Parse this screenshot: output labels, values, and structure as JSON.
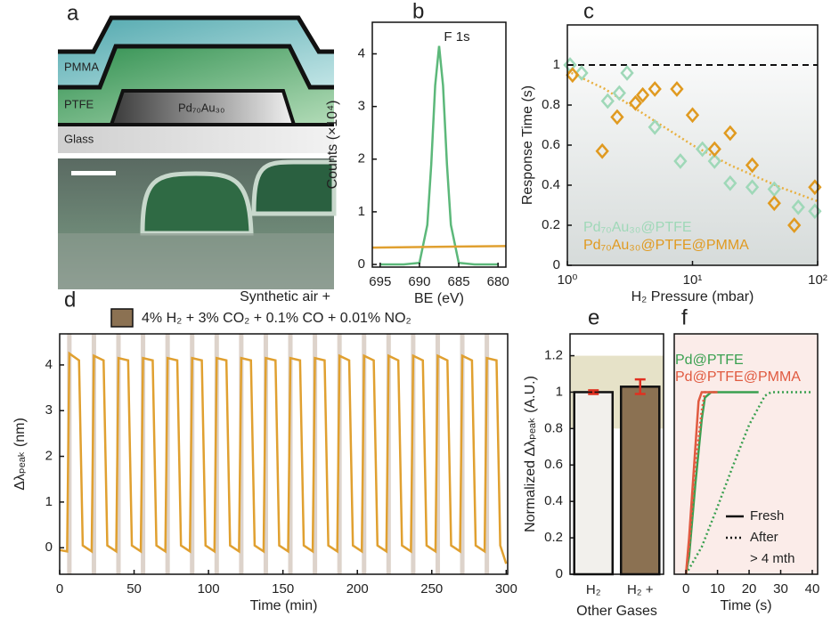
{
  "panel_a": {
    "label": "a",
    "layers": [
      "PMMA",
      "PTFE",
      "Pd₇₀Au₃₀",
      "Glass"
    ]
  },
  "chart_data": [
    {
      "label": "b",
      "type": "line",
      "annotation": "F 1s",
      "xlabel": "BE (eV)",
      "ylabel": "Counts (×10⁴)",
      "xlim": [
        696,
        679
      ],
      "xticks": [
        695,
        690,
        685,
        680
      ],
      "ylim": [
        -0.05,
        4.6
      ],
      "yticks": [
        0,
        1,
        2,
        3,
        4
      ],
      "series": [
        {
          "color": "#5cb87a",
          "x": [
            695,
            692,
            690,
            689,
            688.5,
            688,
            687.5,
            687,
            686.5,
            686,
            685,
            683,
            680
          ],
          "values": [
            0,
            0,
            0.03,
            0.75,
            1.9,
            3.4,
            4.15,
            3.4,
            1.9,
            0.75,
            0.03,
            0,
            0
          ]
        },
        {
          "color": "#e0a030",
          "x": [
            696,
            679
          ],
          "values": [
            0.32,
            0.35
          ]
        }
      ]
    },
    {
      "label": "c",
      "type": "scatter",
      "xscale": "log",
      "xlabel": "H₂ Pressure (mbar)",
      "ylabel": "Response Time (s)",
      "xlim": [
        1,
        100
      ],
      "xticks": [
        {
          "value": 1,
          "label": "10⁰"
        },
        {
          "value": 10,
          "label": "10¹"
        },
        {
          "value": 100,
          "label": "10²"
        }
      ],
      "ylim": [
        0,
        1.2
      ],
      "yticks": [
        0,
        0.2,
        0.4,
        0.6,
        0.8,
        1
      ],
      "reference_line": 1,
      "series": [
        {
          "name": "Pd₇₀Au₃₀@PTFE",
          "color": "#9fd8b8",
          "x": [
            1.05,
            1.3,
            2.1,
            2.6,
            3,
            5,
            8,
            12,
            15,
            20,
            30,
            45,
            70,
            95
          ],
          "values": [
            1.0,
            0.96,
            0.82,
            0.86,
            0.96,
            0.69,
            0.52,
            0.58,
            0.52,
            0.41,
            0.39,
            0.38,
            0.29,
            0.27
          ]
        },
        {
          "name": "Pd₇₀Au₃₀@PTFE@PMMA",
          "color": "#e09a20",
          "x": [
            1.1,
            1.9,
            2.5,
            3.5,
            4,
            5,
            7.5,
            10,
            15,
            20,
            30,
            45,
            65,
            95
          ],
          "values": [
            0.95,
            0.57,
            0.74,
            0.81,
            0.85,
            0.88,
            0.88,
            0.75,
            0.58,
            0.66,
            0.5,
            0.31,
            0.2,
            0.39
          ]
        }
      ],
      "fit": {
        "color": "#e8b040",
        "x": [
          1,
          2,
          5,
          10,
          20,
          50,
          100
        ],
        "values": [
          0.97,
          0.88,
          0.72,
          0.6,
          0.5,
          0.39,
          0.32
        ]
      }
    },
    {
      "label": "d",
      "type": "line",
      "subtitle": "Synthetic air +",
      "legend_label": "4% H₂ + 3% CO₂ + 0.1% CO + 0.01% NO₂",
      "legend_color": "#8b7152",
      "shaded_color": "#ddd3cb",
      "xlabel": "Time (min)",
      "ylabel": "Δλₚₑₐₖ (nm)",
      "xlim": [
        0,
        301
      ],
      "xticks": [
        0,
        50,
        100,
        150,
        200,
        250,
        300
      ],
      "ylim": [
        -0.58,
        4.68
      ],
      "yticks": [
        0,
        1,
        2,
        3,
        4
      ],
      "shaded": [
        [
          5,
          8
        ],
        [
          21.5,
          24.5
        ],
        [
          38,
          41
        ],
        [
          54.5,
          57.5
        ],
        [
          71,
          74
        ],
        [
          87.5,
          90.5
        ],
        [
          104,
          107
        ],
        [
          120.5,
          123.5
        ],
        [
          137,
          140
        ],
        [
          153.5,
          156.5
        ],
        [
          170,
          173
        ],
        [
          186.5,
          189.5
        ],
        [
          203,
          206
        ],
        [
          219.5,
          222.5
        ],
        [
          236,
          239
        ],
        [
          252.5,
          255.5
        ],
        [
          269,
          272
        ],
        [
          285.5,
          288.5
        ]
      ],
      "series": [
        {
          "color": "#e0a030",
          "x": [
            0,
            5,
            6.5,
            13,
            15.5,
            21.5,
            23,
            29.5,
            32,
            38,
            39.5,
            46,
            48.5,
            54.5,
            56,
            62.5,
            65,
            71,
            72.5,
            79,
            81.5,
            87.5,
            89,
            95.5,
            98,
            104,
            105.5,
            112,
            114.5,
            120.5,
            122,
            128.5,
            131,
            137,
            138.5,
            145,
            147.5,
            153.5,
            155,
            161.5,
            164,
            170,
            171.5,
            178,
            180.5,
            186.5,
            188,
            194.5,
            197,
            203,
            204.5,
            211,
            213.5,
            219.5,
            221,
            227.5,
            230,
            236,
            237.5,
            244,
            246.5,
            252.5,
            254,
            260.5,
            263,
            269,
            270.5,
            277,
            279.5,
            285.5,
            287,
            293.5,
            296,
            300
          ],
          "values": [
            -0.05,
            -0.08,
            4.25,
            4.1,
            0.05,
            -0.08,
            4.2,
            4.1,
            0.05,
            -0.08,
            4.15,
            4.1,
            0.05,
            -0.08,
            4.15,
            4.1,
            0.05,
            -0.08,
            4.15,
            4.1,
            0.05,
            -0.08,
            4.15,
            4.1,
            0.05,
            -0.08,
            4.15,
            4.1,
            0.05,
            -0.08,
            4.15,
            4.1,
            0.05,
            -0.08,
            4.15,
            4.1,
            0.05,
            -0.08,
            4.15,
            4.1,
            0.05,
            -0.08,
            4.15,
            4.1,
            0.05,
            -0.08,
            4.2,
            4.1,
            0.05,
            -0.08,
            4.2,
            4.1,
            0.05,
            -0.08,
            4.2,
            4.1,
            0.05,
            -0.08,
            4.2,
            4.1,
            0.05,
            -0.08,
            4.2,
            4.1,
            0.05,
            -0.08,
            4.2,
            4.1,
            0.05,
            -0.08,
            4.15,
            4.1,
            0.05,
            -0.35
          ]
        }
      ]
    },
    {
      "label": "e",
      "type": "bar",
      "categories": [
        "H₂",
        "H₂ +"
      ],
      "xlabel": "Other Gases",
      "ylabel": "Normalized Δλₚₑₐₖ (A.U.)",
      "values": [
        1.0,
        1.03
      ],
      "errors": [
        0.01,
        0.04
      ],
      "colors": [
        "#f2f0ec",
        "#8b7152"
      ],
      "error_color": "#e03020",
      "band": [
        0.8,
        1.2
      ],
      "band_color": "#e6e2c8",
      "ylim": [
        0,
        1.32
      ],
      "yticks": [
        0,
        0.2,
        0.4,
        0.6,
        0.8,
        1,
        1.2
      ]
    },
    {
      "label": "f",
      "type": "line",
      "xlabel": "Time (s)",
      "xlim": [
        -3.7,
        41.7
      ],
      "xticks": [
        0,
        10,
        20,
        30,
        40
      ],
      "ylim": [
        0,
        1.32
      ],
      "background": "#fbece9",
      "legend": [
        {
          "name": "Pd@PTFE",
          "color": "#3aa050"
        },
        {
          "name": "Pd@PTFE@PMMA",
          "color": "#e05a40"
        }
      ],
      "style_legend": [
        {
          "label": "Fresh",
          "dash": "solid"
        },
        {
          "label": "After",
          "dash": "dotted"
        }
      ],
      "style_note": "> 4 mth",
      "series": [
        {
          "color": "#3aa050",
          "dash": "solid",
          "x": [
            0,
            1,
            3,
            5,
            6,
            8,
            23
          ],
          "values": [
            0,
            0.1,
            0.5,
            0.85,
            0.97,
            1.0,
            1.0
          ]
        },
        {
          "color": "#3aa050",
          "dash": "dotted",
          "x": [
            0,
            5,
            10,
            15,
            20,
            25,
            27,
            40
          ],
          "values": [
            0,
            0.15,
            0.37,
            0.6,
            0.82,
            0.98,
            1.0,
            1.0
          ]
        },
        {
          "color": "#e05a40",
          "dash": "solid",
          "x": [
            0,
            1,
            3,
            4,
            5,
            10
          ],
          "values": [
            0,
            0.2,
            0.7,
            0.95,
            1.0,
            1.0
          ]
        },
        {
          "color": "#e05a40",
          "dash": "dotted",
          "x": [
            0,
            1,
            3,
            5,
            6,
            10
          ],
          "values": [
            0,
            0.15,
            0.6,
            0.9,
            1.0,
            1.0
          ]
        }
      ]
    }
  ]
}
